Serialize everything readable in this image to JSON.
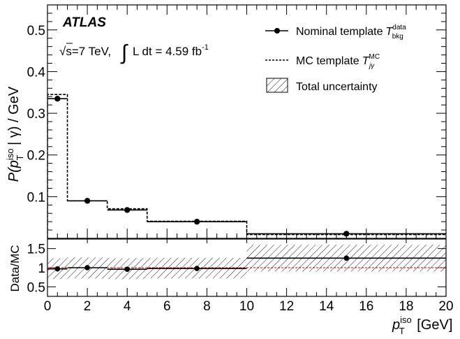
{
  "chart_data": [
    {
      "type": "line",
      "panel": "main",
      "ylabel_prefix": "P(p",
      "ylabel_sup": "iso",
      "ylabel_sub": "T",
      "ylabel_suffix": " | γ) / GeV",
      "ylim": [
        0,
        0.56
      ],
      "yticks": [
        "0.1",
        "0.2",
        "0.3",
        "0.4",
        "0.5"
      ],
      "ytick_values": [
        0.1,
        0.2,
        0.3,
        0.4,
        0.5
      ],
      "bin_edges": [
        0,
        1,
        3,
        5,
        10,
        20
      ],
      "series": [
        {
          "name": "Nominal template",
          "name_var": "T",
          "name_sup": "data",
          "name_sub": "bkg",
          "style": "solid-step-with-points",
          "values": [
            0.335,
            0.09,
            0.068,
            0.04,
            0.011
          ],
          "points_x": [
            0.5,
            2,
            4,
            7.5,
            15
          ]
        },
        {
          "name": "MC template",
          "name_var": "T",
          "name_sup": "MC",
          "name_sub": "jγ",
          "style": "dashed-step",
          "values": [
            0.345,
            0.09,
            0.071,
            0.041,
            0.009
          ]
        },
        {
          "name": "Total uncertainty",
          "style": "hatched-band"
        }
      ],
      "annotations": {
        "experiment": "ATLAS",
        "sqrt": "√",
        "energy": "s=7 TeV,",
        "integral": "∫",
        "lumi": "L dt = 4.59 fb",
        "lumi_exp": "-1"
      },
      "legend_position": "top-right"
    },
    {
      "type": "line",
      "panel": "ratio",
      "ylabel": "Data/MC",
      "ylim": [
        0.25,
        1.75
      ],
      "yticks": [
        "0.5",
        "1",
        "1.5"
      ],
      "ytick_values": [
        0.5,
        1,
        1.5
      ],
      "xlabel_var": "p",
      "xlabel_sup": "iso",
      "xlabel_sub": "T",
      "xlabel_unit": " [GeV]",
      "xlim": [
        0,
        20
      ],
      "xticks": [
        "0",
        "2",
        "4",
        "6",
        "8",
        "10",
        "12",
        "14",
        "16",
        "18",
        "20"
      ],
      "xtick_values": [
        0,
        2,
        4,
        6,
        8,
        10,
        12,
        14,
        16,
        18,
        20
      ],
      "bin_edges": [
        0,
        1,
        3,
        5,
        10,
        20
      ],
      "ratio_values": [
        0.97,
        1.0,
        0.96,
        0.98,
        1.25
      ],
      "points_x": [
        0.5,
        2,
        4,
        7.5,
        15
      ],
      "band_low": [
        0.7,
        0.72,
        0.7,
        0.72,
        0.9
      ],
      "band_high": [
        1.25,
        1.27,
        1.25,
        1.26,
        1.6
      ],
      "reference_line": 1
    }
  ],
  "colors": {
    "axis": "#000000",
    "reference_line": "#cc0000",
    "band": "#000000"
  }
}
